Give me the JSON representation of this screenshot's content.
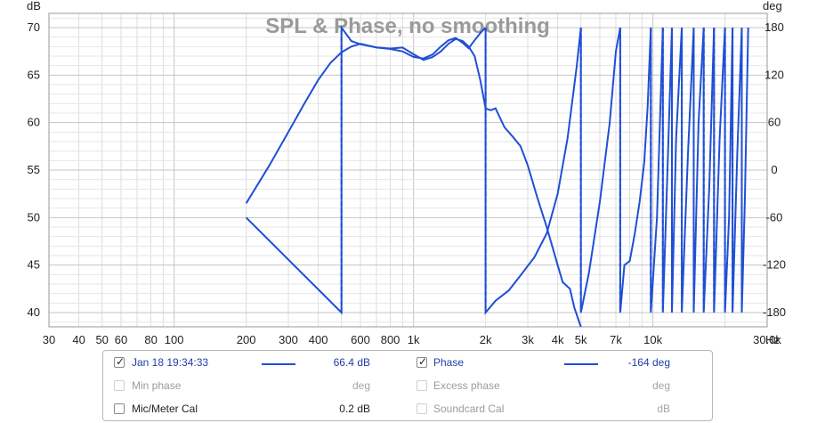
{
  "chart_data": {
    "type": "line",
    "title": "SPL & Phase, no smoothing",
    "left_axis_unit": "dB",
    "right_axis_unit": "deg",
    "x_unit": "Hz",
    "x_scale": "log",
    "xlim": [
      30,
      30000
    ],
    "ylim_left": [
      38.5,
      71.5
    ],
    "ylim_right": [
      -198,
      198
    ],
    "x_ticks": [
      {
        "v": 30,
        "label": "30"
      },
      {
        "v": 40,
        "label": "40"
      },
      {
        "v": 50,
        "label": "50"
      },
      {
        "v": 60,
        "label": "60"
      },
      {
        "v": 80,
        "label": "80"
      },
      {
        "v": 100,
        "label": "100"
      },
      {
        "v": 200,
        "label": "200"
      },
      {
        "v": 300,
        "label": "300"
      },
      {
        "v": 400,
        "label": "400"
      },
      {
        "v": 600,
        "label": "600"
      },
      {
        "v": 800,
        "label": "800"
      },
      {
        "v": 1000,
        "label": "1k"
      },
      {
        "v": 2000,
        "label": "2k"
      },
      {
        "v": 3000,
        "label": "3k"
      },
      {
        "v": 4000,
        "label": "4k"
      },
      {
        "v": 5000,
        "label": "5k"
      },
      {
        "v": 7000,
        "label": "7k"
      },
      {
        "v": 10000,
        "label": "10k"
      },
      {
        "v": 30000,
        "label": "30.0k"
      }
    ],
    "left_ticks": [
      {
        "v": 40,
        "label": "40"
      },
      {
        "v": 45,
        "label": "45"
      },
      {
        "v": 50,
        "label": "50"
      },
      {
        "v": 55,
        "label": "55"
      },
      {
        "v": 60,
        "label": "60"
      },
      {
        "v": 65,
        "label": "65"
      },
      {
        "v": 70,
        "label": "70"
      }
    ],
    "right_ticks": [
      {
        "v": -180,
        "label": "-180"
      },
      {
        "v": -120,
        "label": "-120"
      },
      {
        "v": -60,
        "label": "-60"
      },
      {
        "v": 0,
        "label": "0"
      },
      {
        "v": 60,
        "label": "60"
      },
      {
        "v": 120,
        "label": "120"
      },
      {
        "v": 180,
        "label": "180"
      }
    ],
    "grid": true,
    "color": "#1f4fd6",
    "series": [
      {
        "name": "SPL",
        "axis": "left",
        "points": [
          [
            200,
            51.5
          ],
          [
            250,
            55.5
          ],
          [
            300,
            59
          ],
          [
            350,
            62
          ],
          [
            400,
            64.5
          ],
          [
            450,
            66.3
          ],
          [
            500,
            67.4
          ],
          [
            550,
            68
          ],
          [
            600,
            68.3
          ],
          [
            650,
            68.1
          ],
          [
            700,
            67.9
          ],
          [
            800,
            67.8
          ],
          [
            900,
            67.9
          ],
          [
            1000,
            67.2
          ],
          [
            1100,
            66.6
          ],
          [
            1200,
            66.9
          ],
          [
            1300,
            67.5
          ],
          [
            1400,
            68.3
          ],
          [
            1500,
            68.8
          ],
          [
            1600,
            68.6
          ],
          [
            1700,
            68
          ],
          [
            1800,
            67
          ],
          [
            1900,
            64.5
          ],
          [
            2000,
            61.5
          ],
          [
            2100,
            61.3
          ],
          [
            2200,
            61.5
          ],
          [
            2400,
            59.5
          ],
          [
            2600,
            58.5
          ],
          [
            2800,
            57.5
          ],
          [
            3000,
            55.5
          ],
          [
            3300,
            52
          ],
          [
            3600,
            49
          ],
          [
            4000,
            45
          ],
          [
            4200,
            43.2
          ],
          [
            4500,
            42.5
          ],
          [
            4700,
            40.5
          ],
          [
            5000,
            38.5
          ]
        ]
      },
      {
        "name": "Phase",
        "axis": "right",
        "segments": [
          [
            [
              200,
              -60
            ],
            [
              500,
              -180
            ],
            [
              500,
              180
            ],
            [
              550,
              163
            ],
            [
              600,
              159
            ],
            [
              700,
              155
            ],
            [
              800,
              153
            ],
            [
              900,
              150
            ],
            [
              1000,
              143
            ],
            [
              1100,
              141
            ],
            [
              1200,
              146
            ],
            [
              1300,
              156
            ],
            [
              1400,
              164
            ],
            [
              1500,
              167
            ],
            [
              1600,
              161
            ],
            [
              1700,
              154
            ],
            [
              1800,
              164
            ],
            [
              1900,
              173
            ],
            [
              2000,
              180
            ]
          ],
          [
            [
              2000,
              180
            ],
            [
              2000,
              -180
            ],
            [
              2200,
              -165
            ],
            [
              2500,
              -152
            ],
            [
              2800,
              -133
            ],
            [
              3200,
              -110
            ],
            [
              3600,
              -80
            ],
            [
              4000,
              -30
            ],
            [
              4400,
              40
            ],
            [
              4800,
              130
            ],
            [
              5000,
              180
            ]
          ],
          [
            [
              5000,
              180
            ],
            [
              5000,
              -180
            ],
            [
              5400,
              -130
            ],
            [
              6000,
              -40
            ],
            [
              6600,
              60
            ],
            [
              7000,
              150
            ],
            [
              7300,
              180
            ]
          ],
          [
            [
              7300,
              180
            ],
            [
              7300,
              -180
            ],
            [
              7600,
              -120
            ],
            [
              8000,
              -115
            ],
            [
              8400,
              -80
            ],
            [
              8800,
              -40
            ],
            [
              9200,
              10
            ],
            [
              9500,
              80
            ],
            [
              9800,
              180
            ]
          ],
          [
            [
              9800,
              180
            ],
            [
              9800,
              -180
            ],
            [
              10400,
              -60
            ],
            [
              11000,
              180
            ]
          ],
          [
            [
              11000,
              180
            ],
            [
              11000,
              -180
            ],
            [
              11500,
              0
            ],
            [
              12000,
              180
            ]
          ],
          [
            [
              12000,
              180
            ],
            [
              12000,
              -180
            ],
            [
              12500,
              40
            ],
            [
              13200,
              180
            ]
          ],
          [
            [
              13200,
              180
            ],
            [
              13200,
              -180
            ],
            [
              14000,
              20
            ],
            [
              14800,
              180
            ]
          ],
          [
            [
              14800,
              180
            ],
            [
              14800,
              -180
            ],
            [
              15500,
              60
            ],
            [
              16300,
              180
            ]
          ],
          [
            [
              16300,
              180
            ],
            [
              16300,
              -180
            ],
            [
              17200,
              -20
            ],
            [
              18000,
              180
            ]
          ],
          [
            [
              18000,
              180
            ],
            [
              18000,
              -180
            ],
            [
              19000,
              40
            ],
            [
              20000,
              180
            ]
          ],
          [
            [
              20000,
              180
            ],
            [
              20000,
              -180
            ],
            [
              20800,
              -60
            ],
            [
              21500,
              180
            ]
          ],
          [
            [
              21500,
              180
            ],
            [
              21500,
              -180
            ],
            [
              22500,
              20
            ],
            [
              23500,
              180
            ]
          ],
          [
            [
              23500,
              180
            ],
            [
              23500,
              -180
            ],
            [
              24200,
              -40
            ],
            [
              25000,
              180
            ]
          ]
        ]
      }
    ]
  },
  "legend": {
    "rows": [
      {
        "left_checked": true,
        "left_label": "Jan 18 19:34:33",
        "left_value": "66.4 dB",
        "right_checked": true,
        "right_label": "Phase",
        "right_value": "-164 deg"
      },
      {
        "left_checked": false,
        "left_label": "Min phase",
        "left_value": "deg",
        "right_checked": false,
        "right_label": "Excess phase",
        "right_value": "deg"
      },
      {
        "left_checked": false,
        "left_label": "Mic/Meter Cal",
        "left_value": "0.2 dB",
        "right_checked": false,
        "right_label": "Soundcard Cal",
        "right_value": "dB"
      }
    ]
  }
}
